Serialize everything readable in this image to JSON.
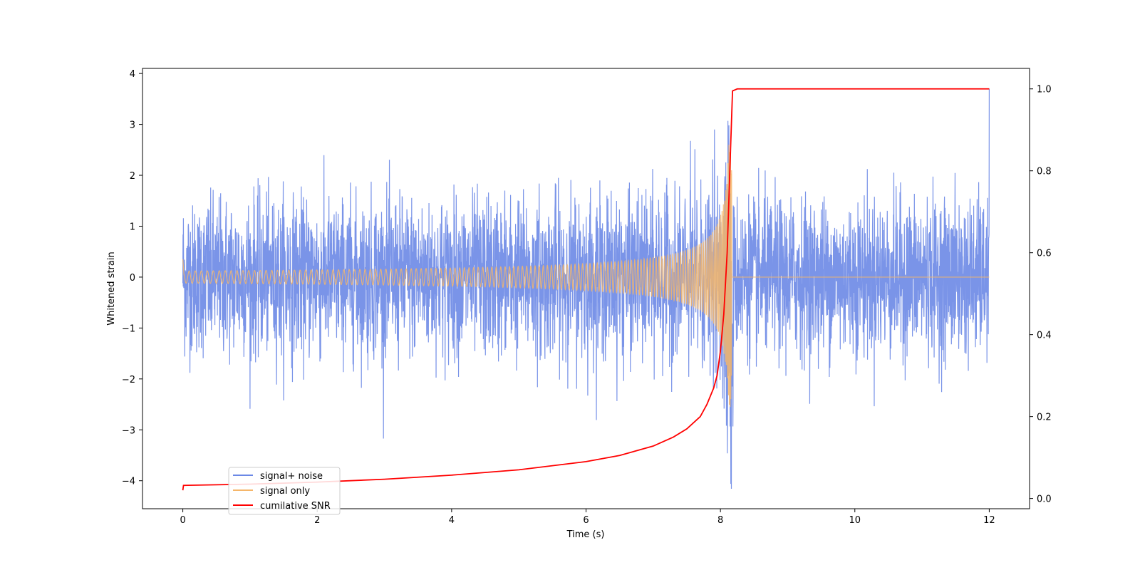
{
  "chart_data": {
    "type": "line",
    "xlabel": "Time (s)",
    "ylabel": "Whitened strain",
    "y2label": "",
    "xlim": [
      -0.6,
      12.6
    ],
    "ylim": [
      -4.55,
      4.1
    ],
    "y2lim": [
      -0.025,
      1.05
    ],
    "x_ticks": [
      0,
      2,
      4,
      6,
      8,
      10,
      12
    ],
    "y_ticks": [
      -4,
      -3,
      -2,
      -1,
      0,
      1,
      2,
      3,
      4
    ],
    "y2_ticks": [
      0.0,
      0.2,
      0.4,
      0.6,
      0.8,
      1.0
    ],
    "legend": "lower-left",
    "grid": false,
    "series": [
      {
        "name": "signal+ noise",
        "color": "#6b88e6",
        "axis": "left",
        "description_values": {
          "x_range": [
            0,
            12
          ],
          "noise_std": 0.75,
          "peak": 3.7,
          "min": -4.15
        }
      },
      {
        "name": "signal only",
        "color": "#f5b66a",
        "axis": "left",
        "chirp_merger_time": 8.17,
        "max_amplitude": 2.6
      },
      {
        "name": "cumilative SNR",
        "color": "#ff0000",
        "axis": "right",
        "x": [
          0,
          0.01,
          1,
          2,
          3,
          4,
          5,
          6,
          6.5,
          7,
          7.3,
          7.5,
          7.7,
          7.8,
          7.9,
          7.95,
          8.0,
          8.05,
          8.1,
          8.15,
          8.18,
          8.25,
          12
        ],
        "values": [
          0.02,
          0.032,
          0.035,
          0.04,
          0.047,
          0.057,
          0.07,
          0.09,
          0.105,
          0.128,
          0.15,
          0.17,
          0.2,
          0.23,
          0.27,
          0.3,
          0.36,
          0.45,
          0.6,
          0.85,
          0.995,
          1.0,
          1.0
        ]
      }
    ]
  }
}
